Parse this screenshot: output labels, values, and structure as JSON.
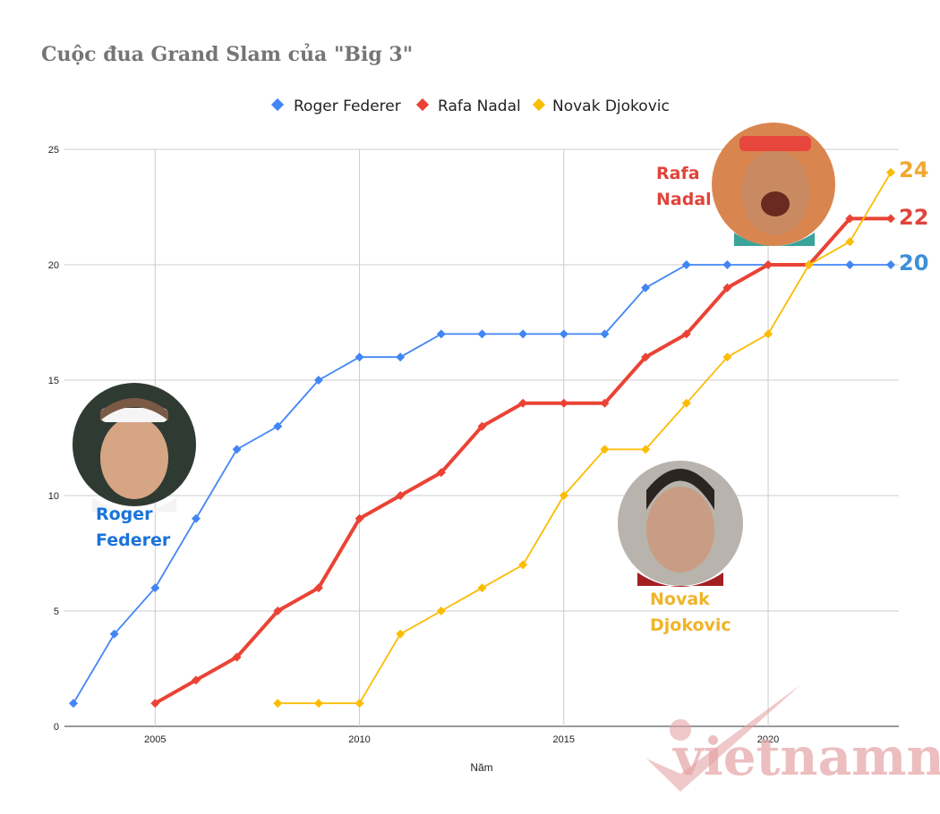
{
  "chart_data": {
    "type": "line",
    "title": "Cuộc đua Grand Slam của \"Big 3\"",
    "xlabel": "Năm",
    "ylabel": "",
    "xlim": [
      2003,
      2023
    ],
    "ylim": [
      0,
      25
    ],
    "x_ticks": [
      2005,
      2010,
      2015,
      2020
    ],
    "y_ticks": [
      0,
      5,
      10,
      15,
      20,
      25
    ],
    "grid": true,
    "legend": "top",
    "series": [
      {
        "name": "Roger Federer",
        "color": "#4285f4",
        "x": [
          2003,
          2004,
          2005,
          2006,
          2007,
          2008,
          2009,
          2010,
          2011,
          2012,
          2013,
          2014,
          2015,
          2016,
          2017,
          2018,
          2019,
          2020,
          2021,
          2022,
          2023
        ],
        "values": [
          1,
          4,
          6,
          9,
          12,
          13,
          15,
          16,
          16,
          17,
          17,
          17,
          17,
          17,
          19,
          20,
          20,
          20,
          20,
          20,
          20
        ]
      },
      {
        "name": "Rafa Nadal",
        "color": "#ea4335",
        "x": [
          2005,
          2006,
          2007,
          2008,
          2009,
          2010,
          2011,
          2012,
          2013,
          2014,
          2015,
          2016,
          2017,
          2018,
          2019,
          2020,
          2021,
          2022,
          2023
        ],
        "values": [
          1,
          2,
          3,
          5,
          6,
          9,
          10,
          11,
          13,
          14,
          14,
          14,
          16,
          17,
          19,
          20,
          20,
          22,
          22
        ]
      },
      {
        "name": "Novak Djokovic",
        "color": "#fbbc04",
        "x": [
          2008,
          2009,
          2010,
          2011,
          2012,
          2013,
          2014,
          2015,
          2016,
          2017,
          2018,
          2019,
          2020,
          2021,
          2022,
          2023
        ],
        "values": [
          1,
          1,
          1,
          4,
          5,
          6,
          7,
          10,
          12,
          12,
          14,
          16,
          17,
          20,
          21,
          24
        ]
      }
    ],
    "end_labels": [
      {
        "text": "24",
        "color": "#f0a830"
      },
      {
        "text": "22",
        "color": "#e0443a"
      },
      {
        "text": "20",
        "color": "#3d8fd9"
      }
    ],
    "annotations": {
      "federer": {
        "line1": "Roger",
        "line2": "Federer",
        "color": "#1a73d9"
      },
      "nadal": {
        "line1": "Rafa",
        "line2": "Nadal",
        "color": "#e0443a"
      },
      "djokovic": {
        "line1": "Novak",
        "line2": "Djokovic",
        "color": "#f0b429"
      }
    },
    "watermark": "vietnamnet"
  }
}
